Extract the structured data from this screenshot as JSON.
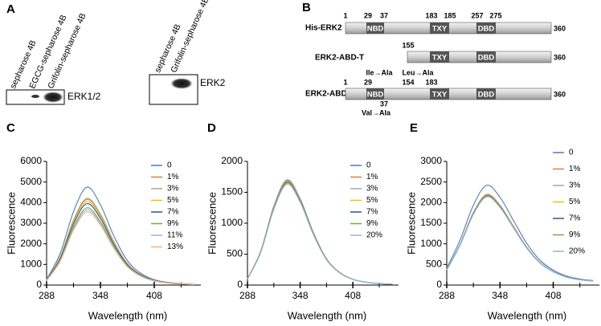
{
  "panel_a": {
    "label": "A",
    "blot_1": {
      "lanes": [
        "sepharose 4B",
        "EGCG-sepharose 4B",
        "Grifolin-sepharose 4B"
      ],
      "band_label": "ERK1/2"
    },
    "blot_2": {
      "lanes": [
        "sepharose 4B",
        "Grifolin-sepharose 4B"
      ],
      "band_label": "ERK2"
    }
  },
  "panel_b": {
    "label": "B",
    "constructs": [
      {
        "name": "His-ERK2",
        "positions": [
          "1",
          "29",
          "37",
          "183",
          "185",
          "257",
          "275"
        ],
        "domains": [
          "NBD",
          "TXY",
          "DBD"
        ],
        "length": "360"
      },
      {
        "name": "ERK2-ABD-T",
        "positions": [
          "155"
        ],
        "domains": [
          "TXY",
          "DBD"
        ],
        "length": "360"
      },
      {
        "name": "ERK2-ABD-S",
        "positions": [
          "1",
          "29",
          "154",
          "183"
        ],
        "positions_below": [
          "37"
        ],
        "mutations": [
          "Ile→Ala",
          "Leu→Ala",
          "Val→Ala"
        ],
        "domains": [
          "NBD",
          "TXY",
          "DBD"
        ],
        "length": "360"
      }
    ]
  },
  "chart_data": [
    {
      "type": "line",
      "panel_label": "C",
      "x_label": "Wavelength (nm)",
      "y_label": "Fluorescence",
      "x": [
        288,
        303,
        318,
        333,
        348,
        363,
        378,
        393,
        408,
        423,
        438,
        453
      ],
      "xlim": [
        288,
        460
      ],
      "xticks": [
        288,
        348,
        408
      ],
      "ylim": [
        0,
        6000
      ],
      "yticks": [
        0,
        1000,
        2000,
        3000,
        4000,
        5000,
        6000
      ],
      "series": [
        {
          "name": "0",
          "color": "#4a7ebb",
          "values": [
            285,
            1520,
            3563,
            4750,
            3895,
            2375,
            1188,
            570,
            261,
            133,
            67,
            38
          ]
        },
        {
          "name": "1%",
          "color": "#e07b39",
          "values": [
            252,
            1344,
            3150,
            4200,
            3444,
            2100,
            1050,
            504,
            231,
            118,
            59,
            34
          ]
        },
        {
          "name": "3%",
          "color": "#a5a5a5",
          "values": [
            249,
            1328,
            3113,
            4150,
            3403,
            2075,
            1038,
            498,
            228,
            116,
            58,
            33
          ]
        },
        {
          "name": "5%",
          "color": "#f2bf00",
          "values": [
            243,
            1296,
            3038,
            4050,
            3321,
            2025,
            1013,
            486,
            223,
            113,
            57,
            32
          ]
        },
        {
          "name": "7%",
          "color": "#2e5597",
          "values": [
            237,
            1264,
            2963,
            3950,
            3239,
            1975,
            988,
            474,
            217,
            111,
            55,
            32
          ]
        },
        {
          "name": "9%",
          "color": "#70ad47",
          "values": [
            225,
            1200,
            2813,
            3750,
            3075,
            1875,
            938,
            450,
            206,
            105,
            53,
            30
          ]
        },
        {
          "name": "11%",
          "color": "#8fb4e3",
          "values": [
            219,
            1168,
            2738,
            3650,
            2993,
            1825,
            913,
            438,
            201,
            102,
            51,
            29
          ]
        },
        {
          "name": "13%",
          "color": "#f4b183",
          "values": [
            213,
            1136,
            2663,
            3550,
            2911,
            1775,
            888,
            426,
            195,
            99,
            50,
            28
          ]
        }
      ]
    },
    {
      "type": "line",
      "panel_label": "D",
      "x_label": "Wavelength (nm)",
      "y_label": "Fluorescence",
      "x": [
        288,
        303,
        318,
        333,
        348,
        363,
        378,
        393,
        408,
        423,
        438,
        453
      ],
      "xlim": [
        288,
        460
      ],
      "xticks": [
        288,
        348,
        408
      ],
      "ylim": [
        0,
        2000
      ],
      "yticks": [
        0,
        500,
        1000,
        1500,
        2000
      ],
      "series": [
        {
          "name": "0",
          "color": "#4a7ebb",
          "values": [
            102,
            544,
            1275,
            1700,
            1394,
            850,
            425,
            204,
            94,
            48,
            24,
            14
          ]
        },
        {
          "name": "1%",
          "color": "#e07b39",
          "values": [
            101,
            541,
            1268,
            1690,
            1386,
            845,
            423,
            203,
            93,
            47,
            24,
            14
          ]
        },
        {
          "name": "3%",
          "color": "#a5a5a5",
          "values": [
            101,
            538,
            1260,
            1680,
            1378,
            840,
            420,
            202,
            92,
            47,
            24,
            13
          ]
        },
        {
          "name": "5%",
          "color": "#f2bf00",
          "values": [
            100,
            534,
            1253,
            1670,
            1369,
            835,
            418,
            200,
            92,
            47,
            23,
            13
          ]
        },
        {
          "name": "7%",
          "color": "#2e5597",
          "values": [
            100,
            531,
            1245,
            1660,
            1361,
            830,
            415,
            199,
            91,
            46,
            23,
            13
          ]
        },
        {
          "name": "9%",
          "color": "#70ad47",
          "values": [
            99,
            528,
            1238,
            1650,
            1353,
            825,
            413,
            198,
            91,
            46,
            23,
            13
          ]
        },
        {
          "name": "20%",
          "color": "#8fb4e3",
          "values": [
            98,
            522,
            1223,
            1630,
            1337,
            815,
            408,
            196,
            90,
            46,
            23,
            13
          ]
        }
      ]
    },
    {
      "type": "line",
      "panel_label": "E",
      "x_label": "Wavelength (nm)",
      "y_label": "Fluorescence",
      "x": [
        288,
        303,
        318,
        333,
        348,
        363,
        378,
        393,
        408,
        423,
        438,
        453
      ],
      "xlim": [
        288,
        460
      ],
      "xticks": [
        288,
        348,
        408
      ],
      "ylim": [
        0,
        3000
      ],
      "yticks": [
        0,
        500,
        1000,
        1500,
        2000,
        2500,
        3000
      ],
      "series": [
        {
          "name": "0",
          "color": "#4a7ebb",
          "values": [
            411,
            1089,
            1936,
            2420,
            2130,
            1573,
            1016,
            605,
            363,
            218,
            145,
            109
          ]
        },
        {
          "name": "1%",
          "color": "#e07b39",
          "values": [
            374,
            990,
            1760,
            2200,
            1936,
            1430,
            924,
            550,
            330,
            198,
            132,
            99
          ]
        },
        {
          "name": "3%",
          "color": "#a5a5a5",
          "values": [
            371,
            981,
            1744,
            2180,
            1918,
            1417,
            916,
            545,
            327,
            196,
            131,
            98
          ]
        },
        {
          "name": "5%",
          "color": "#f2bf00",
          "values": [
            369,
            977,
            1736,
            2170,
            1910,
            1411,
            911,
            543,
            326,
            195,
            130,
            98
          ]
        },
        {
          "name": "7%",
          "color": "#2e5597",
          "values": [
            367,
            972,
            1728,
            2160,
            1901,
            1404,
            907,
            540,
            324,
            194,
            130,
            97
          ]
        },
        {
          "name": "9%",
          "color": "#70ad47",
          "values": [
            366,
            968,
            1720,
            2150,
            1892,
            1398,
            903,
            538,
            323,
            194,
            129,
            97
          ]
        },
        {
          "name": "20%",
          "color": "#8fb4e3",
          "values": [
            364,
            963,
            1712,
            2140,
            1883,
            1391,
            899,
            535,
            321,
            193,
            128,
            96
          ]
        }
      ]
    }
  ]
}
